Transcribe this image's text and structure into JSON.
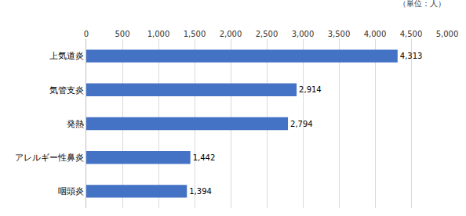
{
  "chart_data": {
    "type": "bar",
    "orientation": "horizontal",
    "categories": [
      "上気道炎",
      "気管支炎",
      "発熱",
      "アレルギー性鼻炎",
      "咽頭炎"
    ],
    "values": [
      4313,
      2914,
      2794,
      1442,
      1394
    ],
    "value_labels": [
      "4,313",
      "2,914",
      "2,794",
      "1,442",
      "1,394"
    ],
    "color": "#4472c4",
    "xlim": [
      0,
      5000
    ],
    "xticks": [
      0,
      500,
      {
        "value": 1000,
        "label": "1,000"
      },
      {
        "value": 1500,
        "label": "1,500"
      },
      {
        "value": 2000,
        "label": "2,000"
      },
      {
        "value": 2500,
        "label": "2,500"
      },
      {
        "value": 3000,
        "label": "3,000"
      },
      {
        "value": 3500,
        "label": "3,500"
      },
      {
        "value": 4000,
        "label": "4,000"
      },
      {
        "value": 4500,
        "label": "4,500"
      },
      {
        "value": 5000,
        "label": "5,000"
      }
    ],
    "annotations": [
      "（単位：人）"
    ],
    "grid": true,
    "data_labels": true
  }
}
